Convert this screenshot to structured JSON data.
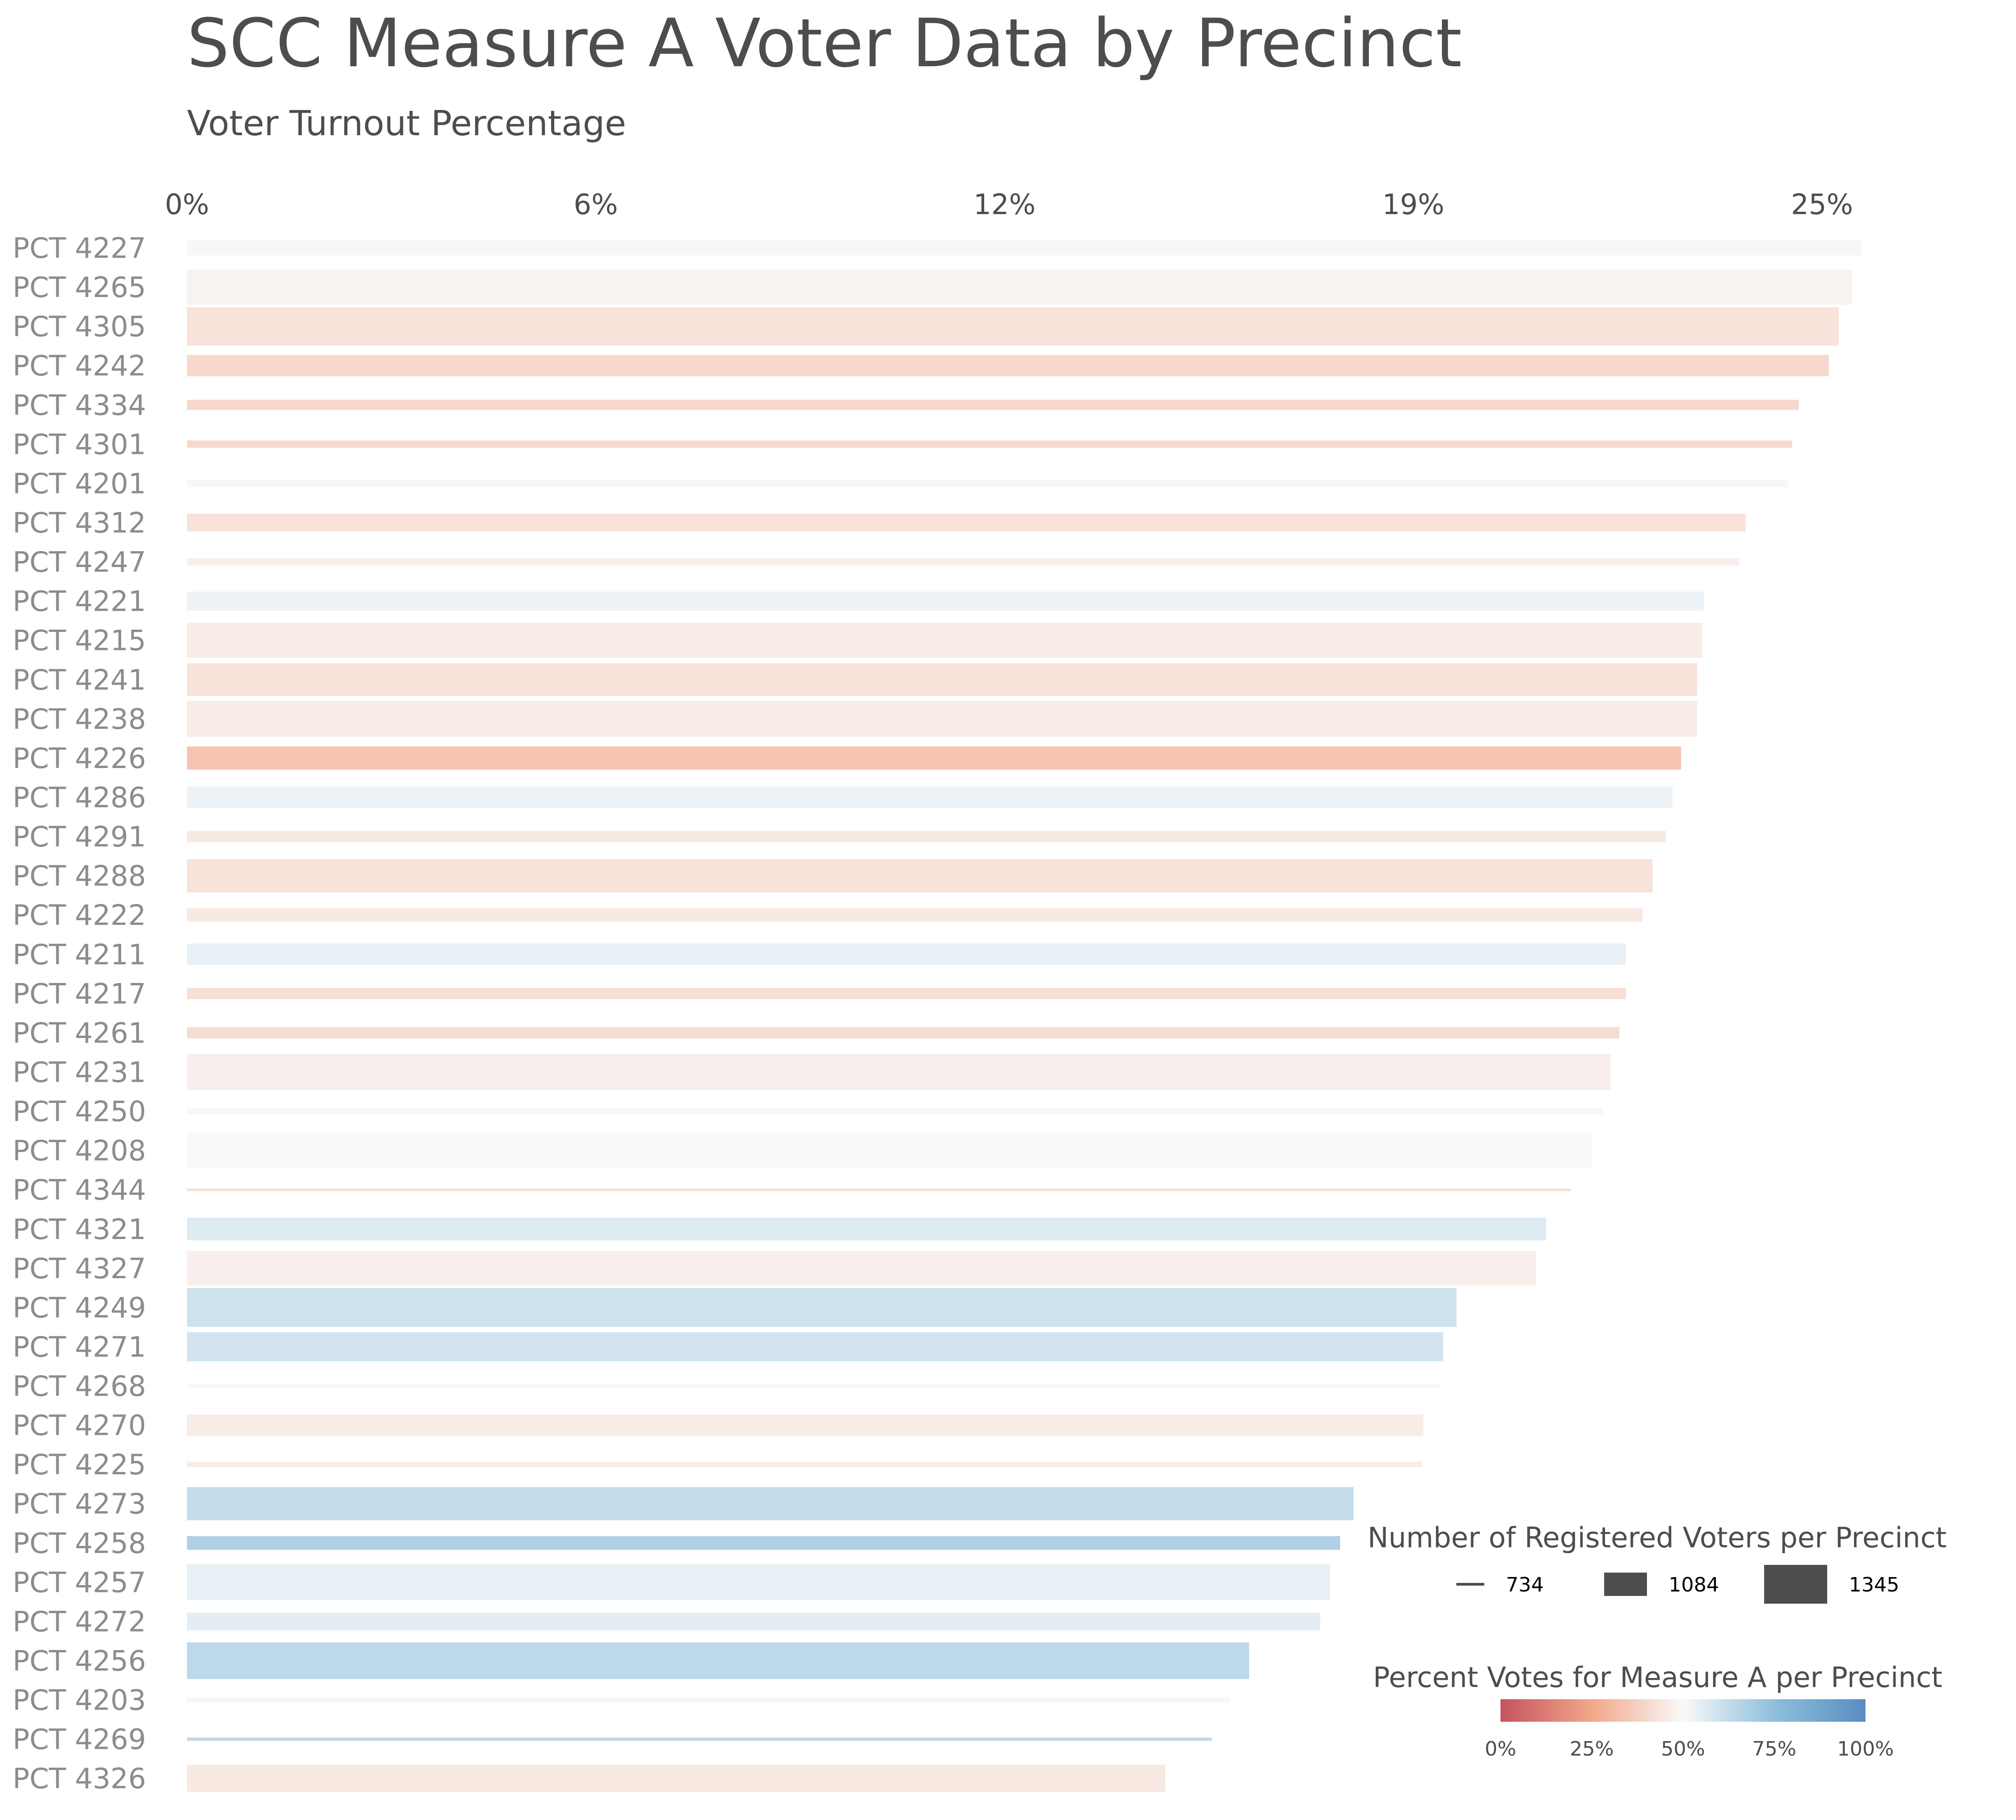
{
  "chart_data": {
    "type": "bar",
    "orientation": "horizontal",
    "title": "SCC Measure A Voter Data by Precinct",
    "subtitle": "Voter Turnout Percentage",
    "x_ticks": [
      "0%",
      "6%",
      "12%",
      "19%",
      "25%"
    ],
    "xlim": [
      0,
      25.2
    ],
    "x_tick_values": [
      0,
      6.15,
      12.3,
      18.45,
      24.6
    ],
    "categories": [
      "PCT 4227",
      "PCT 4265",
      "PCT 4305",
      "PCT 4242",
      "PCT 4334",
      "PCT 4301",
      "PCT 4201",
      "PCT 4312",
      "PCT 4247",
      "PCT 4221",
      "PCT 4215",
      "PCT 4241",
      "PCT 4238",
      "PCT 4226",
      "PCT 4286",
      "PCT 4291",
      "PCT 4288",
      "PCT 4222",
      "PCT 4211",
      "PCT 4217",
      "PCT 4261",
      "PCT 4231",
      "PCT 4250",
      "PCT 4208",
      "PCT 4344",
      "PCT 4321",
      "PCT 4327",
      "PCT 4249",
      "PCT 4271",
      "PCT 4268",
      "PCT 4270",
      "PCT 4225",
      "PCT 4273",
      "PCT 4258",
      "PCT 4257",
      "PCT 4272",
      "PCT 4256",
      "PCT 4203",
      "PCT 4269",
      "PCT 4326"
    ],
    "turnout_percent": [
      25.2,
      25.05,
      24.85,
      24.7,
      24.25,
      24.15,
      24.08,
      23.45,
      23.35,
      22.82,
      22.8,
      22.72,
      22.72,
      22.48,
      22.35,
      22.25,
      22.05,
      21.9,
      21.65,
      21.65,
      21.55,
      21.42,
      21.3,
      21.15,
      20.82,
      20.45,
      20.3,
      19.1,
      18.9,
      18.85,
      18.6,
      18.58,
      17.55,
      17.35,
      17.2,
      17.05,
      15.98,
      15.7,
      15.42,
      14.72
    ],
    "registered_voters": [
      940,
      1280,
      1340,
      1050,
      860,
      810,
      810,
      990,
      810,
      1010,
      1280,
      1240,
      1300,
      1080,
      1050,
      880,
      1250,
      920,
      1050,
      880,
      880,
      1300,
      800,
      1300,
      734,
      1070,
      1270,
      1345,
      1180,
      750,
      1050,
      780,
      1250,
      920,
      1300,
      990,
      1310,
      770,
      745,
      1150
    ],
    "percent_yes": [
      51,
      48,
      43,
      40,
      40,
      40,
      51,
      43,
      47,
      53,
      46,
      43,
      46,
      34,
      53,
      45,
      43,
      45,
      54,
      42,
      41,
      47,
      49,
      50,
      42,
      56,
      47,
      60,
      59,
      49,
      46,
      46,
      62,
      67,
      54,
      55,
      64,
      51,
      63,
      45
    ],
    "size_legend": {
      "title": "Number of Registered Voters per Precinct",
      "labels": [
        "734",
        "1084",
        "1345"
      ],
      "values": [
        734,
        1084,
        1345
      ]
    },
    "color_legend": {
      "title": "Percent Votes for Measure A per Precinct",
      "labels": [
        "0%",
        "25%",
        "50%",
        "75%",
        "100%"
      ],
      "colormap": "RdBu",
      "colors": [
        "#b2182b",
        "#ef8a62",
        "#f7f7f7",
        "#67a9cf",
        "#2166ac"
      ]
    },
    "grid": false,
    "legend_position": "bottom-right"
  }
}
